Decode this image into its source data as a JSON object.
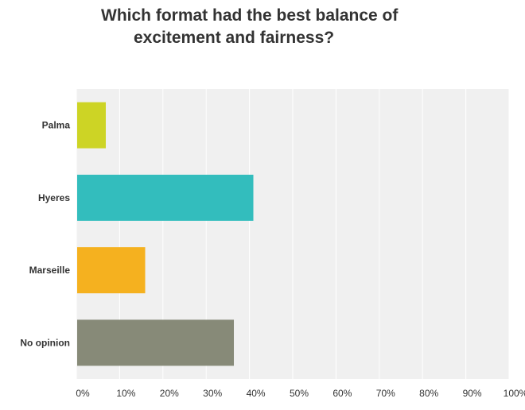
{
  "chart_data": {
    "type": "bar",
    "orientation": "horizontal",
    "title_lines": [
      "Which format had the best balance of",
      "excitement and fairness?"
    ],
    "categories": [
      "Palma",
      "Hyeres",
      "Marseille",
      "No opinion"
    ],
    "values": [
      6.8,
      40.9,
      15.9,
      36.4
    ],
    "colors": [
      "#cdd425",
      "#33bdbd",
      "#f5b11f",
      "#878a78"
    ],
    "xlim": [
      0,
      100
    ],
    "x_ticks": [
      "0%",
      "10%",
      "20%",
      "30%",
      "40%",
      "50%",
      "60%",
      "70%",
      "80%",
      "90%",
      "100%"
    ],
    "grid": true,
    "legend": "none",
    "plot_background": "#f0f0f0"
  }
}
